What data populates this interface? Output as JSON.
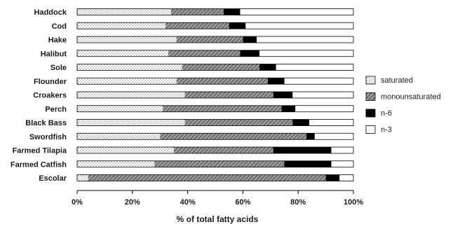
{
  "chart_data": {
    "type": "bar",
    "orientation": "horizontal",
    "stacked": true,
    "xlabel": "% of total fatty acids",
    "xlim": [
      0,
      100
    ],
    "xticks": [
      "0%",
      "20%",
      "40%",
      "60%",
      "80%",
      "100%"
    ],
    "categories": [
      "Haddock",
      "Cod",
      "Hake",
      "Halibut",
      "Sole",
      "Flounder",
      "Croakers",
      "Perch",
      "Black Bass",
      "Swordfish",
      "Farmed Tilapia",
      "Farmed Catfish",
      "Escolar"
    ],
    "series": [
      {
        "name": "saturated",
        "pattern": "dots",
        "values": [
          34,
          32,
          36,
          33,
          38,
          36,
          39,
          31,
          39,
          30,
          35,
          28,
          4
        ]
      },
      {
        "name": "monounsaturated",
        "pattern": "hatch",
        "values": [
          19,
          23,
          24,
          26,
          28,
          33,
          32,
          43,
          39,
          53,
          36,
          47,
          86
        ]
      },
      {
        "name": "n-6",
        "pattern": "solid-black",
        "values": [
          6,
          6,
          5,
          7,
          6,
          6,
          7,
          5,
          6,
          3,
          21,
          17,
          5
        ]
      },
      {
        "name": "n-3",
        "pattern": "white",
        "values": [
          41,
          39,
          35,
          34,
          28,
          25,
          22,
          21,
          16,
          14,
          8,
          8,
          5
        ]
      }
    ],
    "legend_position": "right",
    "grid": false
  }
}
